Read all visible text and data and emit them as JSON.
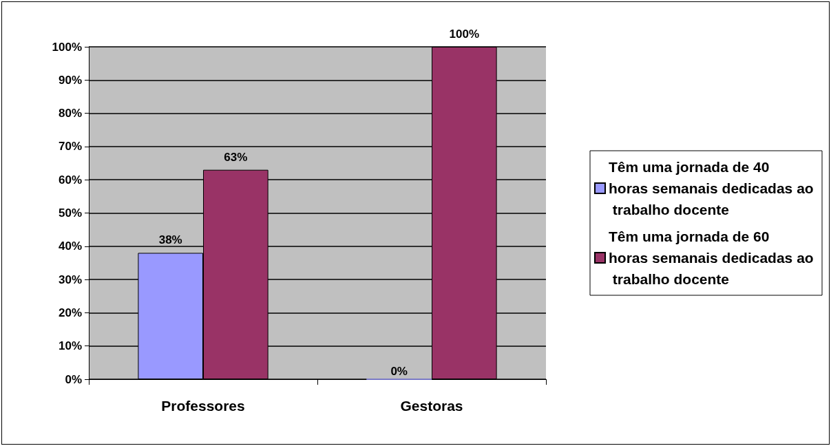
{
  "chart_data": {
    "type": "bar",
    "categories": [
      "Professores",
      "Gestoras"
    ],
    "series": [
      {
        "name": "Têm uma jornada de 40 horas semanais dedicadas ao trabalho docente",
        "color": "#9999ff",
        "values": [
          38,
          0
        ],
        "value_labels": [
          "38%",
          "0%"
        ]
      },
      {
        "name": "Têm uma jornada de 60 horas semanais dedicadas ao trabalho docente",
        "color": "#993366",
        "values": [
          63,
          100
        ],
        "value_labels": [
          "63%",
          "100%"
        ]
      }
    ],
    "ylim": [
      0,
      100
    ],
    "yticks": [
      {
        "value": 0,
        "label": "0%"
      },
      {
        "value": 10,
        "label": "10%"
      },
      {
        "value": 20,
        "label": "20%"
      },
      {
        "value": 30,
        "label": "30%"
      },
      {
        "value": 40,
        "label": "40%"
      },
      {
        "value": 50,
        "label": "50%"
      },
      {
        "value": 60,
        "label": "60%"
      },
      {
        "value": 70,
        "label": "70%"
      },
      {
        "value": 80,
        "label": "80%"
      },
      {
        "value": 90,
        "label": "90%"
      },
      {
        "value": 100,
        "label": "100%"
      }
    ],
    "grid": "y",
    "legend": "right"
  }
}
